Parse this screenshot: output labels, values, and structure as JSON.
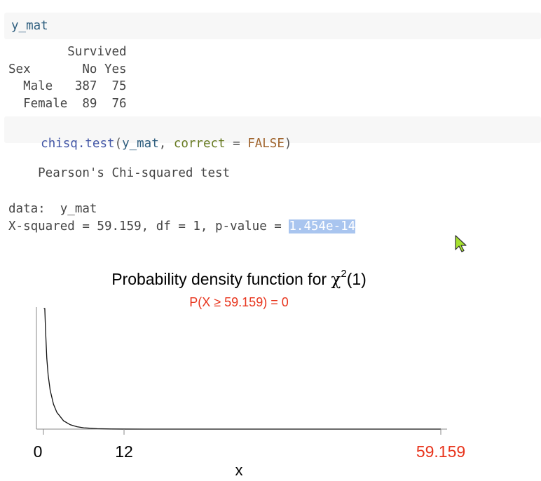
{
  "cells": {
    "input1": {
      "code": "y_mat"
    },
    "output1": {
      "lines": [
        "        Survived",
        "Sex       No Yes",
        "  Male   387  75",
        "  Female  89  76"
      ]
    },
    "input2": {
      "fn": "chisq.test",
      "open": "(",
      "arg1": "y_mat",
      "sep": ", ",
      "param": "correct",
      "eq": " = ",
      "value": "FALSE",
      "close": ")"
    },
    "output2": {
      "test_name": "    Pearson's Chi-squared test",
      "data_line": "data:  y_mat",
      "stat_prefix": "X-squared = 59.159, df = 1, p-value = ",
      "p_value": "1.454e-14"
    }
  },
  "cursor": {
    "icon": "mouse-pointer-icon",
    "color": "#a6e22e"
  },
  "chart_data": {
    "type": "line",
    "title_prefix": "Probability density function for ",
    "title_symbol": "χ",
    "title_sup": "2",
    "title_suffix": "(1)",
    "subtitle": "P(X ≥ 59.159) = 0",
    "subtitle_color": "#e8341c",
    "xlabel": "x",
    "ylabel": "",
    "xlim": [
      0,
      59.159
    ],
    "ticks": [
      {
        "value": 0,
        "label": "0",
        "color": "#000000"
      },
      {
        "value": 12,
        "label": "12",
        "color": "#000000"
      },
      {
        "value": 59.159,
        "label": "59.159",
        "color": "#e8341c"
      }
    ],
    "density": {
      "df": 1,
      "x": [
        0.05,
        0.1,
        0.2,
        0.3,
        0.5,
        0.7,
        1,
        1.5,
        2,
        3,
        4,
        5,
        6,
        8,
        10,
        12,
        15,
        20,
        30,
        40,
        50,
        59.159
      ],
      "y": [
        1.7288,
        1.2001,
        0.807,
        0.6267,
        0.4394,
        0.336,
        0.242,
        0.1542,
        0.1038,
        0.0514,
        0.027,
        0.0146,
        0.0081,
        0.0026,
        0.00085,
        0.00029,
        5e-05,
        4.4e-06,
        0.0,
        0.0,
        0.0,
        0.0
      ]
    },
    "grid": false,
    "legend": "none"
  }
}
